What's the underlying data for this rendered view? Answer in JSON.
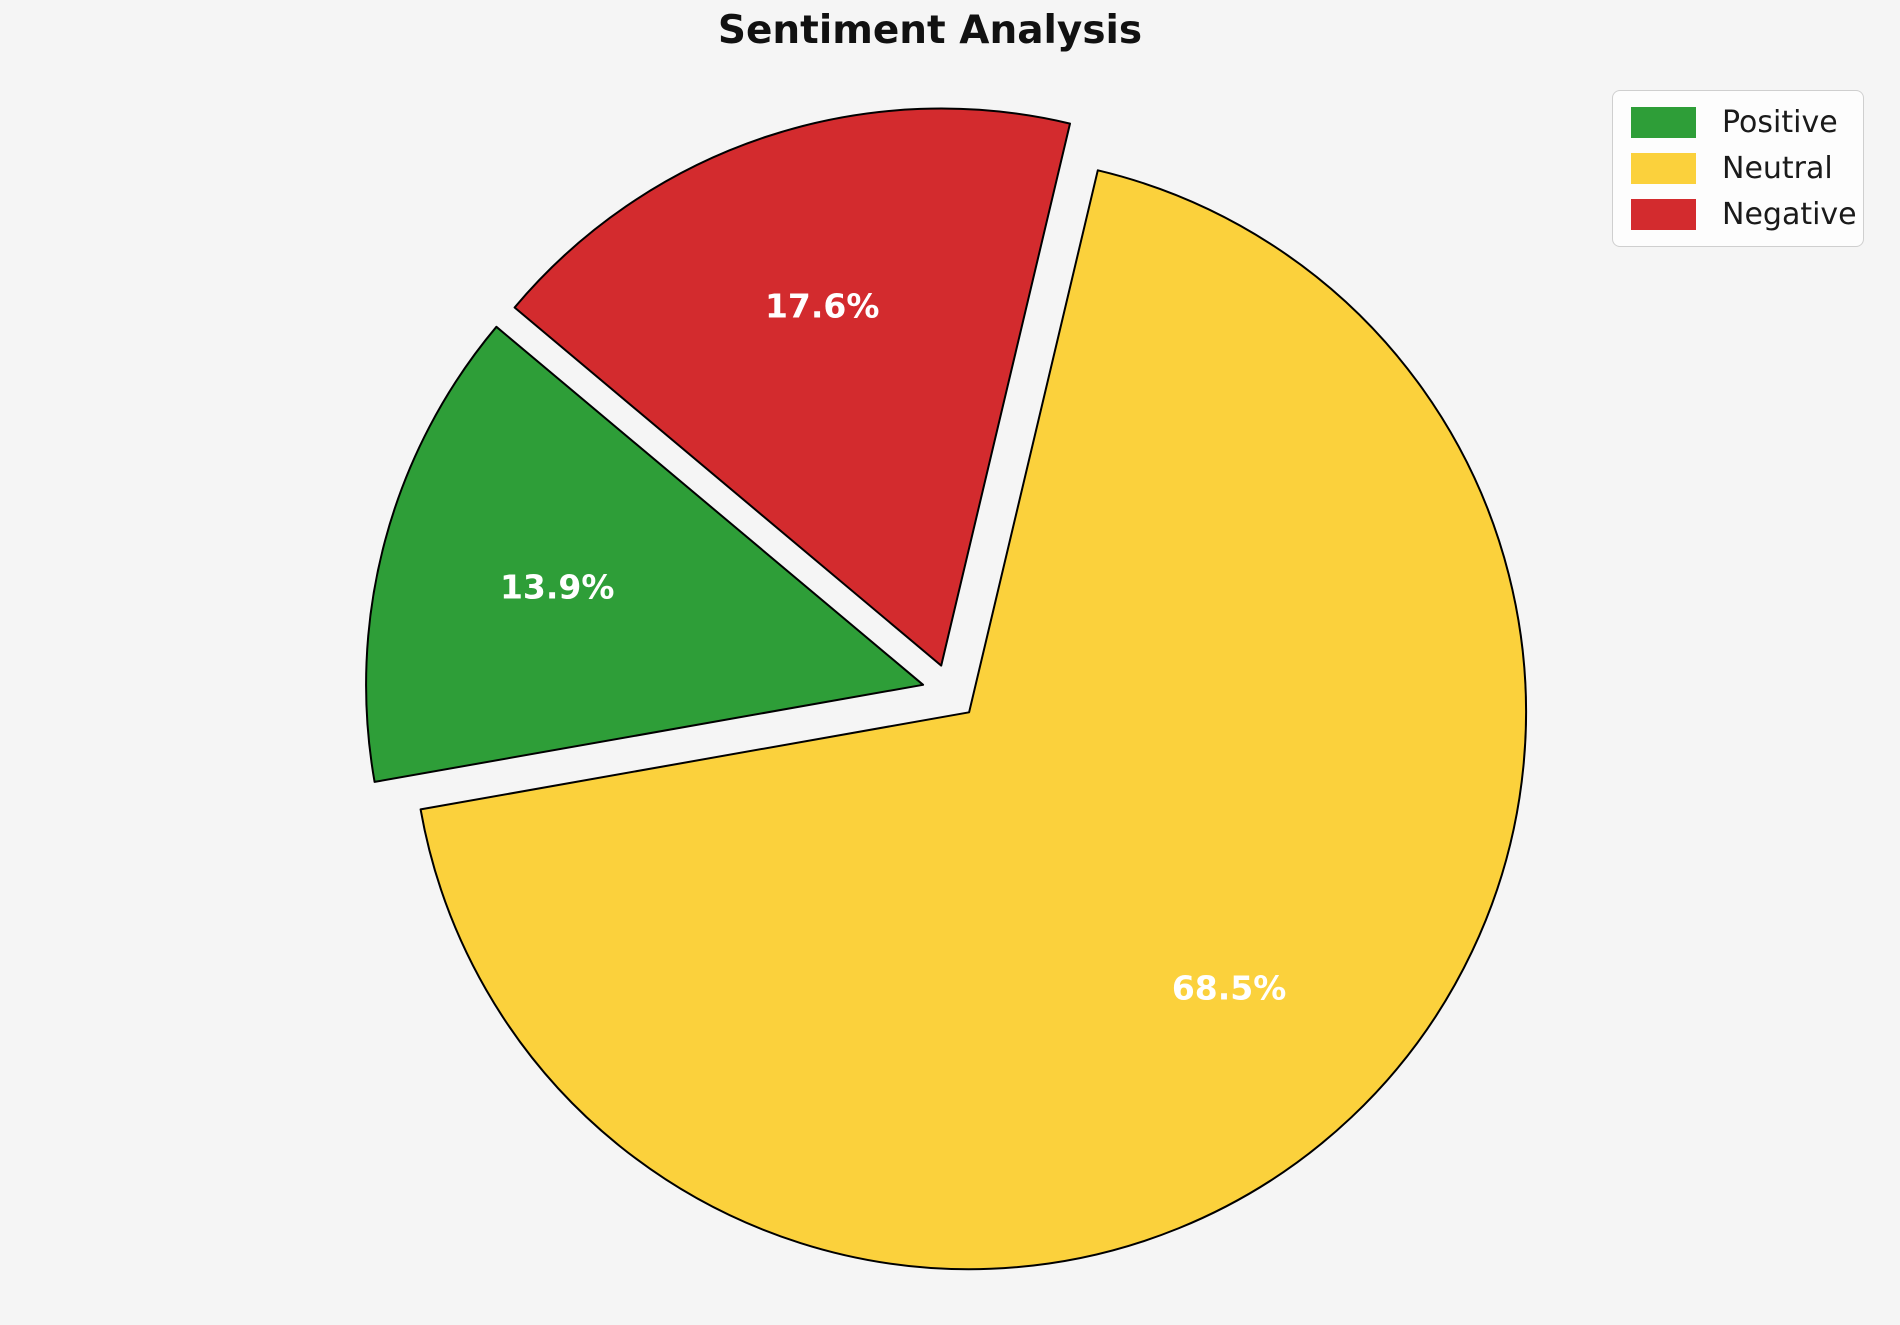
{
  "page": {
    "background": "#f5f5f5"
  },
  "chart_data": {
    "type": "pie",
    "title": "Sentiment Analysis",
    "labels": [
      "Positive",
      "Neutral",
      "Negative"
    ],
    "values": [
      13.9,
      68.5,
      17.6
    ],
    "pct_labels": [
      "13.9%",
      "68.5%",
      "17.6%"
    ],
    "colors": [
      "#2e9e38",
      "#fbd13c",
      "#d32b2e"
    ],
    "edge_color": "#000000",
    "edge_width": 2,
    "pct_label_color": "#ffffff",
    "startangle": 140,
    "direction": "counterclockwise",
    "explode": [
      0.05,
      0.05,
      0.05
    ],
    "pctdistance": 0.68,
    "legend_position": "upper right"
  }
}
